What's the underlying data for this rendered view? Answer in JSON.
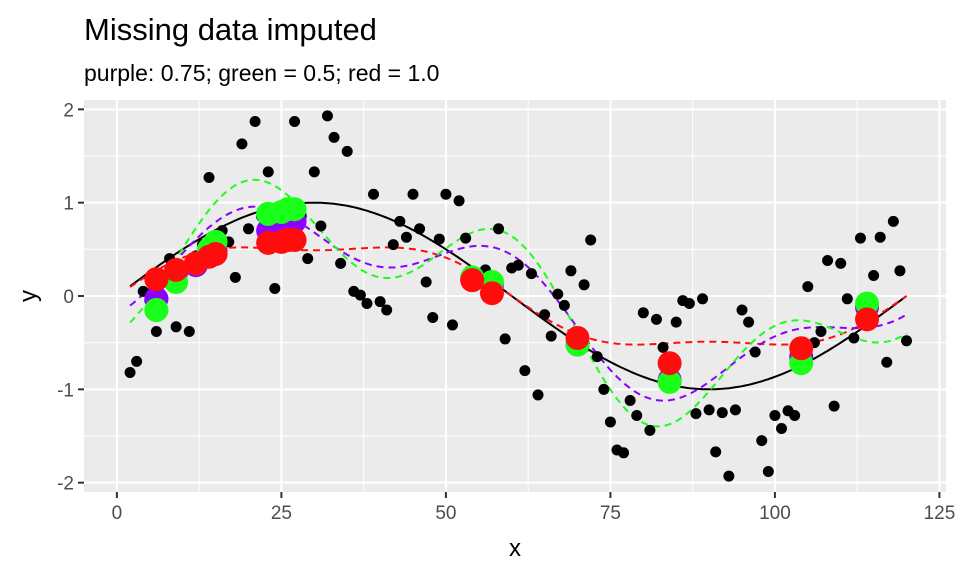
{
  "chart_data": {
    "type": "scatter",
    "title": "Missing data imputed",
    "subtitle": "purple: 0.75; green = 0.5; red = 1.0",
    "xlabel": "x",
    "ylabel": "y",
    "xlim": [
      -5,
      126
    ],
    "ylim": [
      -2.1,
      2.1
    ],
    "x_ticks": [
      0,
      25,
      50,
      75,
      100,
      125
    ],
    "y_ticks": [
      -2,
      -1,
      0,
      1,
      2
    ],
    "grid": true,
    "colors": {
      "panel": "#ebebeb",
      "grid": "#ffffff",
      "points": "#000000",
      "purple": "#8b00ff",
      "green": "#1aff1a",
      "red": "#ff0d0d",
      "truth": "#000000"
    },
    "observed_points": {
      "x": [
        2,
        3,
        4,
        5,
        6,
        7,
        8,
        9,
        10,
        11,
        12,
        13,
        14,
        15,
        16,
        17,
        18,
        19,
        20,
        21,
        22,
        23,
        24,
        25,
        27,
        28,
        29,
        30,
        31,
        32,
        33,
        34,
        35,
        36,
        37,
        38,
        39,
        40,
        41,
        42,
        43,
        44,
        45,
        46,
        47,
        48,
        49,
        50,
        51,
        52,
        53,
        55,
        56,
        58,
        59,
        60,
        61,
        62,
        63,
        64,
        65,
        66,
        67,
        68,
        69,
        71,
        72,
        73,
        74,
        75,
        76,
        77,
        78,
        79,
        80,
        81,
        82,
        83,
        85,
        86,
        87,
        88,
        89,
        90,
        91,
        92,
        93,
        94,
        95,
        96,
        97,
        98,
        99,
        100,
        101,
        102,
        103,
        105,
        106,
        107,
        108,
        109,
        110,
        111,
        112,
        113,
        115,
        116,
        117,
        118,
        119,
        120
      ],
      "y": [
        -0.82,
        -0.7,
        0.05,
        -0.05,
        -0.38,
        0.15,
        0.4,
        -0.33,
        0.3,
        -0.38,
        0.43,
        0.55,
        1.27,
        0.38,
        0.7,
        0.58,
        0.2,
        1.63,
        0.72,
        1.87,
        0.85,
        1.33,
        0.08,
        0.95,
        1.87,
        0.85,
        0.4,
        1.33,
        0.75,
        1.93,
        1.7,
        0.35,
        1.55,
        0.05,
        0.01,
        -0.08,
        1.09,
        -0.06,
        -0.15,
        0.55,
        0.8,
        0.63,
        1.09,
        0.72,
        0.15,
        -0.23,
        0.61,
        1.09,
        -0.31,
        1.02,
        0.62,
        0.17,
        0.28,
        0.72,
        -0.46,
        0.3,
        0.33,
        -0.8,
        0.24,
        -1.06,
        -0.2,
        -0.43,
        0.02,
        -0.1,
        0.27,
        0.12,
        0.6,
        -0.65,
        -1.0,
        -1.35,
        -1.65,
        -1.68,
        -1.12,
        -1.28,
        -0.18,
        -1.44,
        -0.25,
        -0.55,
        -0.28,
        -0.05,
        -0.08,
        -1.26,
        -0.03,
        -1.22,
        -1.67,
        -1.25,
        -1.93,
        -1.22,
        -0.15,
        -0.28,
        -0.6,
        -1.55,
        -1.88,
        -1.28,
        -1.42,
        -1.23,
        -1.28,
        0.1,
        -0.5,
        -0.38,
        0.38,
        -1.18,
        0.35,
        -0.03,
        -0.45,
        0.62,
        0.22,
        0.63,
        -0.71,
        0.8,
        0.27,
        -0.48
      ]
    },
    "imputed_points": {
      "x": [
        6,
        6,
        9,
        12,
        14,
        15,
        23,
        23,
        25,
        26,
        26,
        27,
        54,
        57,
        70,
        84,
        104,
        114
      ],
      "purple": [
        -0.03,
        -0.03,
        0.25,
        0.33,
        0.43,
        0.48,
        0.7,
        0.7,
        0.75,
        0.8,
        0.8,
        0.8,
        0.17,
        0.12,
        -0.52,
        -0.9,
        -0.65,
        -0.12
      ],
      "green": [
        -0.15,
        -0.15,
        0.15,
        0.35,
        0.5,
        0.58,
        0.88,
        0.88,
        0.9,
        0.93,
        0.93,
        0.93,
        0.2,
        0.15,
        -0.52,
        -0.92,
        -0.72,
        -0.08
      ],
      "red": [
        0.18,
        0.18,
        0.28,
        0.35,
        0.42,
        0.45,
        0.57,
        0.57,
        0.58,
        0.6,
        0.6,
        0.6,
        0.17,
        0.03,
        -0.45,
        -0.72,
        -0.56,
        -0.25
      ]
    }
  }
}
